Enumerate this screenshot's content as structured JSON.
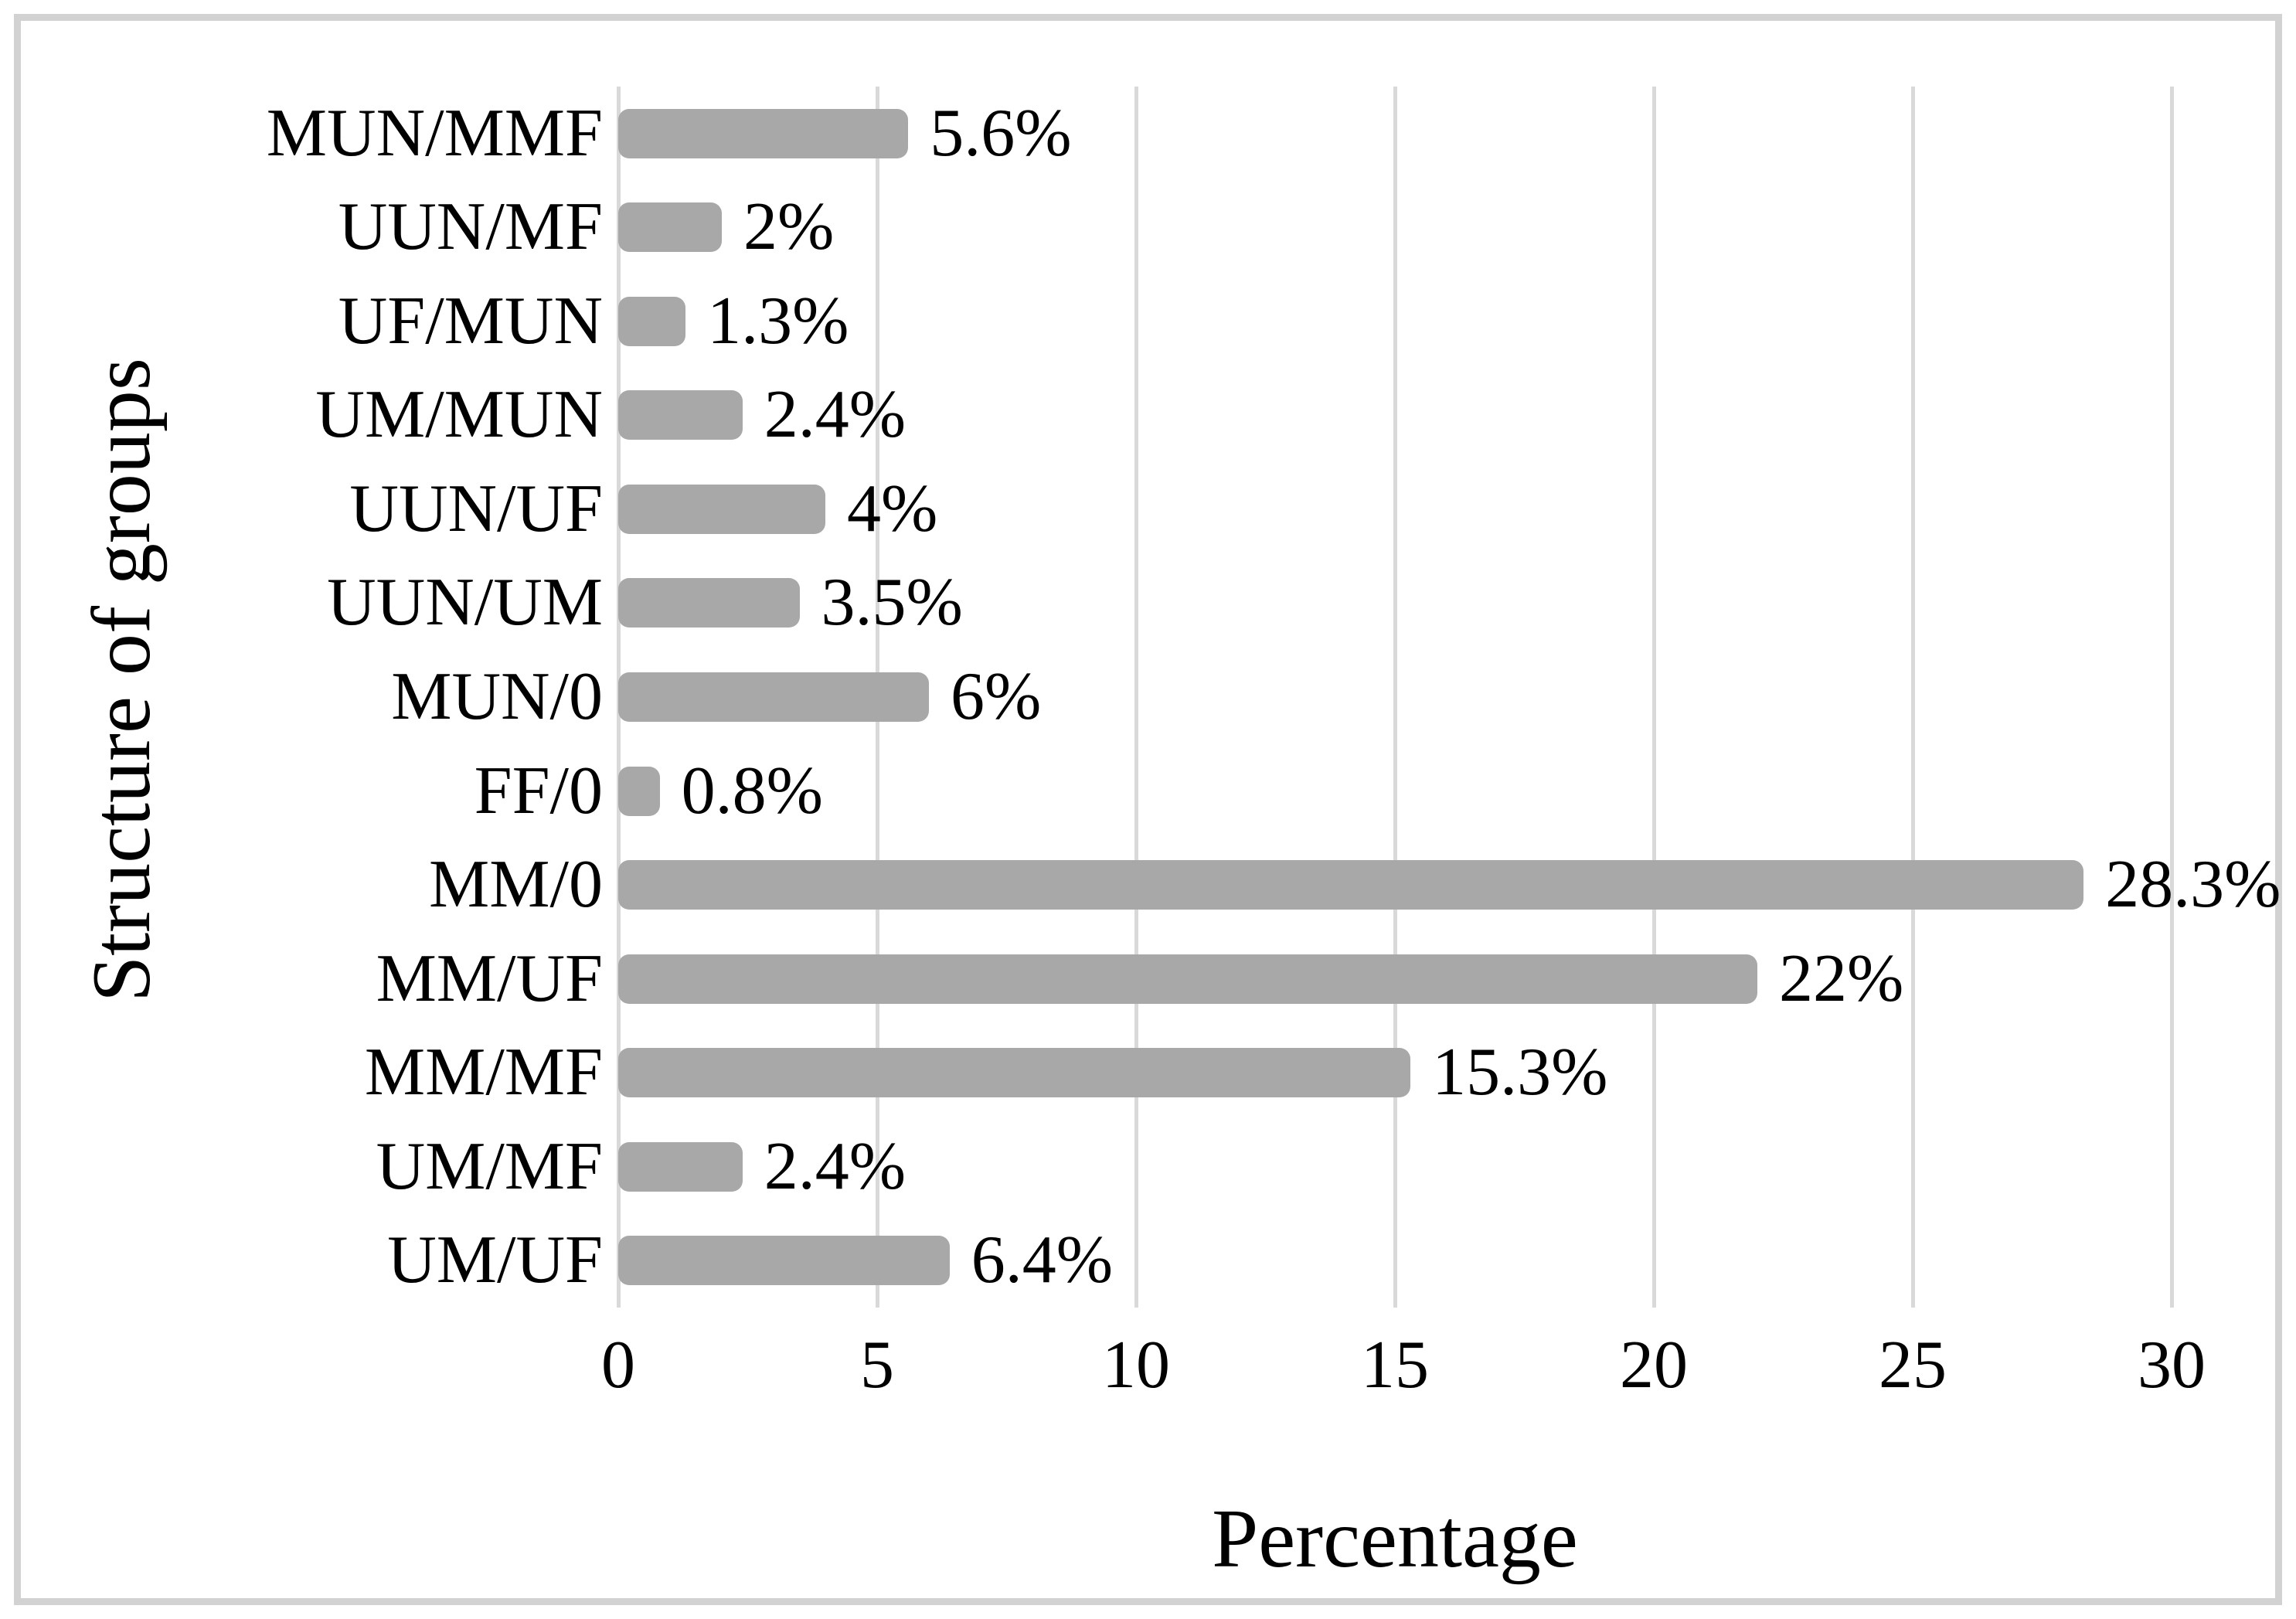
{
  "chart_data": {
    "type": "bar",
    "orientation": "horizontal",
    "title": "",
    "xlabel": "Percentage",
    "ylabel": "Structure of groups",
    "categories": [
      "MUN/MMF",
      "UUN/MF",
      "UF/MUN",
      "UM/MUN",
      "UUN/UF",
      "UUN/UM",
      "MUN/0",
      "FF/0",
      "MM/0",
      "MM/UF",
      "MM/MF",
      "UM/MF",
      "UM/UF"
    ],
    "values": [
      5.6,
      2,
      1.3,
      2.4,
      4,
      3.5,
      6,
      0.8,
      28.3,
      22,
      15.3,
      2.4,
      6.4
    ],
    "value_labels": [
      "5.6%",
      "2%",
      "1.3%",
      "2.4%",
      "4%",
      "3.5%",
      "6%",
      "0.8%",
      "28.3%",
      "22%",
      "15.3%",
      "2.4%",
      "6.4%"
    ],
    "xlim": [
      0,
      30
    ],
    "x_ticks": [
      0,
      5,
      10,
      15,
      20,
      25,
      30
    ],
    "grid": true,
    "legend": "none",
    "bar_color": "#a8a8a8",
    "gridline_color": "#d9d9d9",
    "frame_color": "#d2d2d2",
    "text_color": "#000000"
  }
}
